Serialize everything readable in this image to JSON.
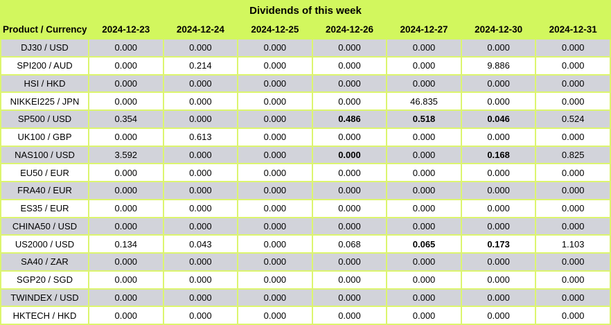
{
  "title": "Dividends of this week",
  "colors": {
    "header_background": "#d2f75e",
    "grid_line": "#dcf56e",
    "row_gray": "#d2d3da",
    "row_white": "#ffffff",
    "text": "#000000"
  },
  "table": {
    "columns": [
      "Product / Currency",
      "2024-12-23",
      "2024-12-24",
      "2024-12-25",
      "2024-12-26",
      "2024-12-27",
      "2024-12-30",
      "2024-12-31"
    ],
    "rows": [
      {
        "product": "DJ30 / USD",
        "values": [
          "0.000",
          "0.000",
          "0.000",
          "0.000",
          "0.000",
          "0.000",
          "0.000"
        ],
        "bold": [
          false,
          false,
          false,
          false,
          false,
          false,
          false
        ]
      },
      {
        "product": "SPI200 / AUD",
        "values": [
          "0.000",
          "0.214",
          "0.000",
          "0.000",
          "0.000",
          "9.886",
          "0.000"
        ],
        "bold": [
          false,
          false,
          false,
          false,
          false,
          false,
          false
        ]
      },
      {
        "product": "HSI / HKD",
        "values": [
          "0.000",
          "0.000",
          "0.000",
          "0.000",
          "0.000",
          "0.000",
          "0.000"
        ],
        "bold": [
          false,
          false,
          false,
          false,
          false,
          false,
          false
        ]
      },
      {
        "product": "NIKKEI225 / JPN",
        "values": [
          "0.000",
          "0.000",
          "0.000",
          "0.000",
          "46.835",
          "0.000",
          "0.000"
        ],
        "bold": [
          false,
          false,
          false,
          false,
          false,
          false,
          false
        ]
      },
      {
        "product": "SP500 / USD",
        "values": [
          "0.354",
          "0.000",
          "0.000",
          "0.486",
          "0.518",
          "0.046",
          "0.524"
        ],
        "bold": [
          false,
          false,
          false,
          true,
          true,
          true,
          false
        ]
      },
      {
        "product": "UK100 / GBP",
        "values": [
          "0.000",
          "0.613",
          "0.000",
          "0.000",
          "0.000",
          "0.000",
          "0.000"
        ],
        "bold": [
          false,
          false,
          false,
          false,
          false,
          false,
          false
        ]
      },
      {
        "product": "NAS100 / USD",
        "values": [
          "3.592",
          "0.000",
          "0.000",
          "0.000",
          "0.000",
          "0.168",
          "0.825"
        ],
        "bold": [
          false,
          false,
          false,
          true,
          false,
          true,
          false
        ]
      },
      {
        "product": "EU50 / EUR",
        "values": [
          "0.000",
          "0.000",
          "0.000",
          "0.000",
          "0.000",
          "0.000",
          "0.000"
        ],
        "bold": [
          false,
          false,
          false,
          false,
          false,
          false,
          false
        ]
      },
      {
        "product": "FRA40 / EUR",
        "values": [
          "0.000",
          "0.000",
          "0.000",
          "0.000",
          "0.000",
          "0.000",
          "0.000"
        ],
        "bold": [
          false,
          false,
          false,
          false,
          false,
          false,
          false
        ]
      },
      {
        "product": "ES35 / EUR",
        "values": [
          "0.000",
          "0.000",
          "0.000",
          "0.000",
          "0.000",
          "0.000",
          "0.000"
        ],
        "bold": [
          false,
          false,
          false,
          false,
          false,
          false,
          false
        ]
      },
      {
        "product": "CHINA50 / USD",
        "values": [
          "0.000",
          "0.000",
          "0.000",
          "0.000",
          "0.000",
          "0.000",
          "0.000"
        ],
        "bold": [
          false,
          false,
          false,
          false,
          false,
          false,
          false
        ]
      },
      {
        "product": "US2000 / USD",
        "values": [
          "0.134",
          "0.043",
          "0.000",
          "0.068",
          "0.065",
          "0.173",
          "1.103"
        ],
        "bold": [
          false,
          false,
          false,
          false,
          true,
          true,
          false
        ]
      },
      {
        "product": "SA40 / ZAR",
        "values": [
          "0.000",
          "0.000",
          "0.000",
          "0.000",
          "0.000",
          "0.000",
          "0.000"
        ],
        "bold": [
          false,
          false,
          false,
          false,
          false,
          false,
          false
        ]
      },
      {
        "product": "SGP20 / SGD",
        "values": [
          "0.000",
          "0.000",
          "0.000",
          "0.000",
          "0.000",
          "0.000",
          "0.000"
        ],
        "bold": [
          false,
          false,
          false,
          false,
          false,
          false,
          false
        ]
      },
      {
        "product": "TWINDEX / USD",
        "values": [
          "0.000",
          "0.000",
          "0.000",
          "0.000",
          "0.000",
          "0.000",
          "0.000"
        ],
        "bold": [
          false,
          false,
          false,
          false,
          false,
          false,
          false
        ]
      },
      {
        "product": "HKTECH / HKD",
        "values": [
          "0.000",
          "0.000",
          "0.000",
          "0.000",
          "0.000",
          "0.000",
          "0.000"
        ],
        "bold": [
          false,
          false,
          false,
          false,
          false,
          false,
          false
        ]
      }
    ]
  },
  "chart_data": {
    "type": "table",
    "title": "Dividends of this week",
    "columns": [
      "Product / Currency",
      "2024-12-23",
      "2024-12-24",
      "2024-12-25",
      "2024-12-26",
      "2024-12-27",
      "2024-12-30",
      "2024-12-31"
    ],
    "rows": [
      [
        "DJ30 / USD",
        0.0,
        0.0,
        0.0,
        0.0,
        0.0,
        0.0,
        0.0
      ],
      [
        "SPI200 / AUD",
        0.0,
        0.214,
        0.0,
        0.0,
        0.0,
        9.886,
        0.0
      ],
      [
        "HSI / HKD",
        0.0,
        0.0,
        0.0,
        0.0,
        0.0,
        0.0,
        0.0
      ],
      [
        "NIKKEI225 / JPN",
        0.0,
        0.0,
        0.0,
        0.0,
        46.835,
        0.0,
        0.0
      ],
      [
        "SP500 / USD",
        0.354,
        0.0,
        0.0,
        0.486,
        0.518,
        0.046,
        0.524
      ],
      [
        "UK100 / GBP",
        0.0,
        0.613,
        0.0,
        0.0,
        0.0,
        0.0,
        0.0
      ],
      [
        "NAS100 / USD",
        3.592,
        0.0,
        0.0,
        0.0,
        0.0,
        0.168,
        0.825
      ],
      [
        "EU50 / EUR",
        0.0,
        0.0,
        0.0,
        0.0,
        0.0,
        0.0,
        0.0
      ],
      [
        "FRA40 / EUR",
        0.0,
        0.0,
        0.0,
        0.0,
        0.0,
        0.0,
        0.0
      ],
      [
        "ES35 / EUR",
        0.0,
        0.0,
        0.0,
        0.0,
        0.0,
        0.0,
        0.0
      ],
      [
        "CHINA50 / USD",
        0.0,
        0.0,
        0.0,
        0.0,
        0.0,
        0.0,
        0.0
      ],
      [
        "US2000 / USD",
        0.134,
        0.043,
        0.0,
        0.068,
        0.065,
        0.173,
        1.103
      ],
      [
        "SA40 / ZAR",
        0.0,
        0.0,
        0.0,
        0.0,
        0.0,
        0.0,
        0.0
      ],
      [
        "SGP20 / SGD",
        0.0,
        0.0,
        0.0,
        0.0,
        0.0,
        0.0,
        0.0
      ],
      [
        "TWINDEX / USD",
        0.0,
        0.0,
        0.0,
        0.0,
        0.0,
        0.0,
        0.0
      ],
      [
        "HKTECH / HKD",
        0.0,
        0.0,
        0.0,
        0.0,
        0.0,
        0.0,
        0.0
      ]
    ],
    "bold_cells": [
      {
        "row": "SP500 / USD",
        "dates": [
          "2024-12-26",
          "2024-12-27",
          "2024-12-30"
        ]
      },
      {
        "row": "NAS100 / USD",
        "dates": [
          "2024-12-26",
          "2024-12-30"
        ]
      },
      {
        "row": "US2000 / USD",
        "dates": [
          "2024-12-27",
          "2024-12-30"
        ]
      }
    ]
  }
}
